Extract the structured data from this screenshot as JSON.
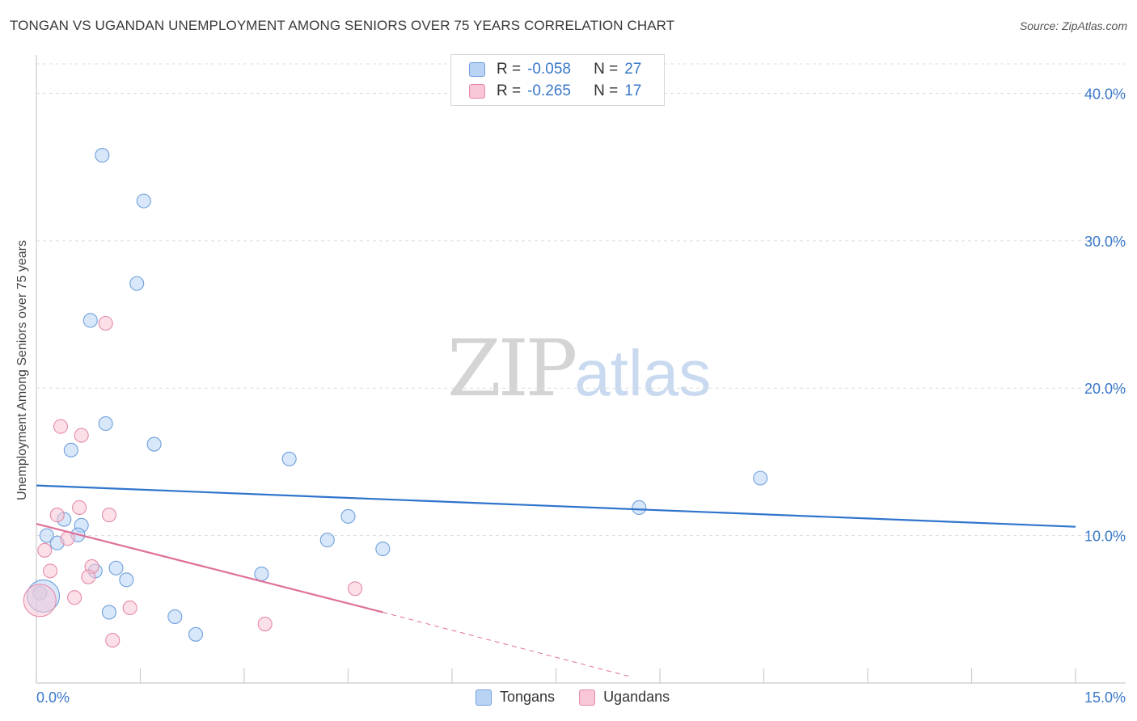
{
  "header": {
    "title": "TONGAN VS UGANDAN UNEMPLOYMENT AMONG SENIORS OVER 75 YEARS CORRELATION CHART",
    "source": "Source: ZipAtlas.com"
  },
  "watermark": {
    "zip": "ZIP",
    "atlas": "atlas"
  },
  "legend": {
    "rows": [
      {
        "r_label": "R = ",
        "r_value": "-0.058",
        "n_label": "N = ",
        "n_value": "27",
        "fill": "#b8d3f4",
        "stroke": "#6fa0dc"
      },
      {
        "r_label": "R = ",
        "r_value": "-0.265",
        "n_label": "N = ",
        "n_value": "17",
        "fill": "#f8c6d6",
        "stroke": "#e58aa8"
      }
    ]
  },
  "bottom_legend": [
    {
      "label": "Tongans",
      "fill": "#b8d3f4",
      "stroke": "#6fa0dc"
    },
    {
      "label": "Ugandans",
      "fill": "#f8c6d6",
      "stroke": "#e58aa8"
    }
  ],
  "chart_data": {
    "type": "scatter",
    "title": "TONGAN VS UGANDAN UNEMPLOYMENT AMONG SENIORS OVER 75 YEARS CORRELATION CHART",
    "xlabel": "",
    "ylabel": "Unemployment Among Seniors over 75 years",
    "xlim": [
      0,
      15
    ],
    "ylim": [
      0,
      42
    ],
    "x_tick_labels": [
      "0.0%",
      "15.0%"
    ],
    "y_ticks": [
      10,
      20,
      30,
      40
    ],
    "y_tick_labels": [
      "10.0%",
      "20.0%",
      "30.0%",
      "40.0%"
    ],
    "colors": {
      "tongans_line": "#2f74cc",
      "ugandans_line": "#e0709a",
      "tick_label": "#3a78c9",
      "grid": "#dddddd"
    },
    "series": [
      {
        "name": "Tongans",
        "points": [
          {
            "x": 0.95,
            "y": 35.8
          },
          {
            "x": 1.55,
            "y": 32.7
          },
          {
            "x": 1.45,
            "y": 27.1
          },
          {
            "x": 0.78,
            "y": 24.6
          },
          {
            "x": 1.0,
            "y": 17.6
          },
          {
            "x": 1.7,
            "y": 16.2
          },
          {
            "x": 0.5,
            "y": 15.8
          },
          {
            "x": 3.65,
            "y": 15.2
          },
          {
            "x": 10.45,
            "y": 13.9
          },
          {
            "x": 8.7,
            "y": 11.9
          },
          {
            "x": 4.5,
            "y": 11.3
          },
          {
            "x": 0.4,
            "y": 11.1
          },
          {
            "x": 0.65,
            "y": 10.7
          },
          {
            "x": 0.15,
            "y": 10.0
          },
          {
            "x": 0.6,
            "y": 10.05
          },
          {
            "x": 0.3,
            "y": 9.5
          },
          {
            "x": 4.2,
            "y": 9.7
          },
          {
            "x": 5.0,
            "y": 9.1
          },
          {
            "x": 1.15,
            "y": 7.8
          },
          {
            "x": 0.85,
            "y": 7.6
          },
          {
            "x": 1.3,
            "y": 7.0
          },
          {
            "x": 3.25,
            "y": 7.4
          },
          {
            "x": 0.05,
            "y": 6.1
          },
          {
            "x": 1.05,
            "y": 4.8
          },
          {
            "x": 2.0,
            "y": 4.5
          },
          {
            "x": 2.3,
            "y": 3.3
          },
          {
            "x": 0.1,
            "y": 5.9
          }
        ],
        "trend": {
          "x": [
            0,
            15
          ],
          "y": [
            13.4,
            10.6
          ]
        }
      },
      {
        "name": "Ugandans",
        "points": [
          {
            "x": 1.0,
            "y": 24.4
          },
          {
            "x": 0.35,
            "y": 17.4
          },
          {
            "x": 0.65,
            "y": 16.8
          },
          {
            "x": 0.62,
            "y": 11.9
          },
          {
            "x": 1.05,
            "y": 11.4
          },
          {
            "x": 0.3,
            "y": 11.4
          },
          {
            "x": 0.45,
            "y": 9.8
          },
          {
            "x": 0.12,
            "y": 9.0
          },
          {
            "x": 0.2,
            "y": 7.6
          },
          {
            "x": 0.8,
            "y": 7.9
          },
          {
            "x": 0.75,
            "y": 7.2
          },
          {
            "x": 4.6,
            "y": 6.4
          },
          {
            "x": 0.55,
            "y": 5.8
          },
          {
            "x": 1.35,
            "y": 5.1
          },
          {
            "x": 3.3,
            "y": 4.0
          },
          {
            "x": 1.1,
            "y": 2.9
          },
          {
            "x": 0.05,
            "y": 5.6
          }
        ],
        "trend": {
          "x": [
            0,
            5.0
          ],
          "y": [
            10.8,
            4.8
          ]
        },
        "trend_dashed": {
          "x": [
            5.0,
            8.6
          ],
          "y": [
            4.8,
            0.4
          ]
        }
      }
    ]
  }
}
